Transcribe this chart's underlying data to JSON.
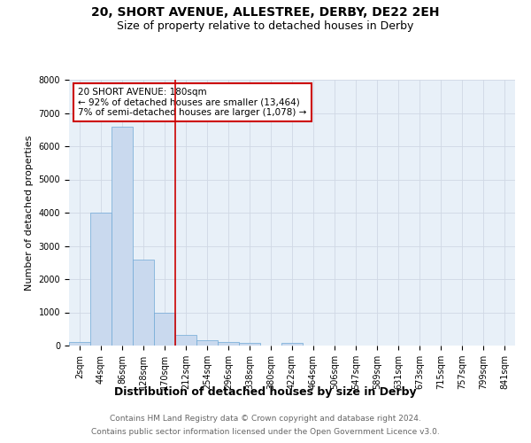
{
  "title": "20, SHORT AVENUE, ALLESTREE, DERBY, DE22 2EH",
  "subtitle": "Size of property relative to detached houses in Derby",
  "xlabel": "Distribution of detached houses by size in Derby",
  "ylabel": "Number of detached properties",
  "bin_labels": [
    "2sqm",
    "44sqm",
    "86sqm",
    "128sqm",
    "170sqm",
    "212sqm",
    "254sqm",
    "296sqm",
    "338sqm",
    "380sqm",
    "422sqm",
    "464sqm",
    "506sqm",
    "547sqm",
    "589sqm",
    "631sqm",
    "673sqm",
    "715sqm",
    "757sqm",
    "799sqm",
    "841sqm"
  ],
  "bar_heights": [
    100,
    4000,
    6600,
    2600,
    1000,
    320,
    150,
    110,
    80,
    10,
    80,
    0,
    0,
    0,
    0,
    0,
    0,
    0,
    0,
    0,
    0
  ],
  "bar_color": "#c9d9ee",
  "bar_edge_color": "#6fa8d6",
  "property_line_x": 4.5,
  "annotation_text": "20 SHORT AVENUE: 180sqm\n← 92% of detached houses are smaller (13,464)\n7% of semi-detached houses are larger (1,078) →",
  "annotation_box_color": "#ffffff",
  "annotation_box_edge": "#cc0000",
  "vline_color": "#cc0000",
  "ylim": [
    0,
    8000
  ],
  "grid_color": "#d0d8e4",
  "background_color": "#e8f0f8",
  "footer_line1": "Contains HM Land Registry data © Crown copyright and database right 2024.",
  "footer_line2": "Contains public sector information licensed under the Open Government Licence v3.0.",
  "title_fontsize": 10,
  "subtitle_fontsize": 9,
  "xlabel_fontsize": 9,
  "ylabel_fontsize": 8,
  "tick_fontsize": 7,
  "annotation_fontsize": 7.5,
  "footer_fontsize": 6.5
}
